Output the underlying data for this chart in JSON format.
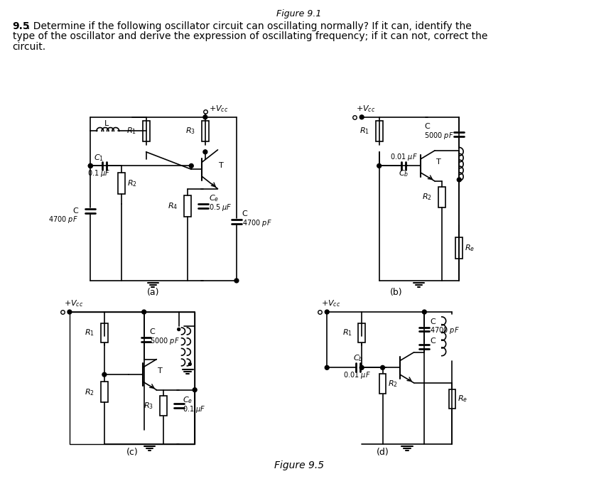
{
  "title_top": "Figure 9.1",
  "problem_text_line1": "9.5. Determine if the following oscillator circuit can oscillating normally? If it can, identify the",
  "problem_text_line2": "type of the oscillator and derive the expression of oscillating frequency; if it can not, correct the",
  "problem_text_line3": "circuit.",
  "figure_caption": "Figure 9.5",
  "subcaption_a": "(a)",
  "subcaption_b": "(b)",
  "subcaption_c": "(c)",
  "subcaption_d": "(d)",
  "bg_color": "#ffffff",
  "text_color": "#000000",
  "line_color": "#000000"
}
